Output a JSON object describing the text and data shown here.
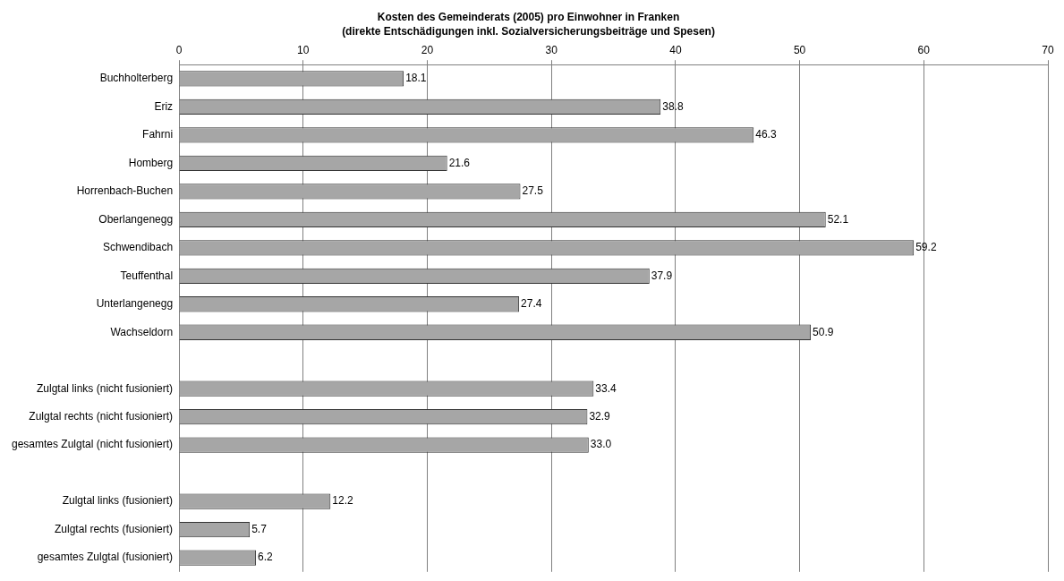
{
  "chart_data": {
    "type": "bar",
    "orientation": "horizontal",
    "title": "Kosten des Gemeinderats (2005) pro Einwohner in Franken",
    "subtitle": "(direkte Entschädigungen inkl. Sozialversicherungsbeiträge und Spesen)",
    "categories": [
      "Buchholterberg",
      "Eriz",
      "Fahrni",
      "Homberg",
      "Horrenbach-Buchen",
      "Oberlangenegg",
      "Schwendibach",
      "Teuffenthal",
      "Unterlangenegg",
      "Wachseldorn",
      null,
      "Zulgtal links (nicht fusioniert)",
      "Zulgtal rechts (nicht fusioniert)",
      "gesamtes Zulgtal (nicht fusioniert)",
      null,
      "Zulgtal links (fusioniert)",
      "Zulgtal rechts (fusioniert)",
      "gesamtes Zulgtal (fusioniert)"
    ],
    "values": [
      18.1,
      38.8,
      46.3,
      21.6,
      27.5,
      52.1,
      59.2,
      37.9,
      27.4,
      50.9,
      null,
      33.4,
      32.9,
      33.0,
      null,
      12.2,
      5.7,
      6.2
    ],
    "value_labels": [
      "18.1",
      "38.8",
      "46.3",
      "21.6",
      "27.5",
      "52.1",
      "59.2",
      "37.9",
      "27.4",
      "50.9",
      null,
      "33.4",
      "32.9",
      "33.0",
      null,
      "12.2",
      "5.7",
      "6.2"
    ],
    "color": "#a6a6a6",
    "xlim": [
      0,
      70
    ],
    "xticks": [
      0,
      10,
      20,
      30,
      40,
      50,
      60,
      70
    ],
    "grid": "x",
    "legend": false
  }
}
